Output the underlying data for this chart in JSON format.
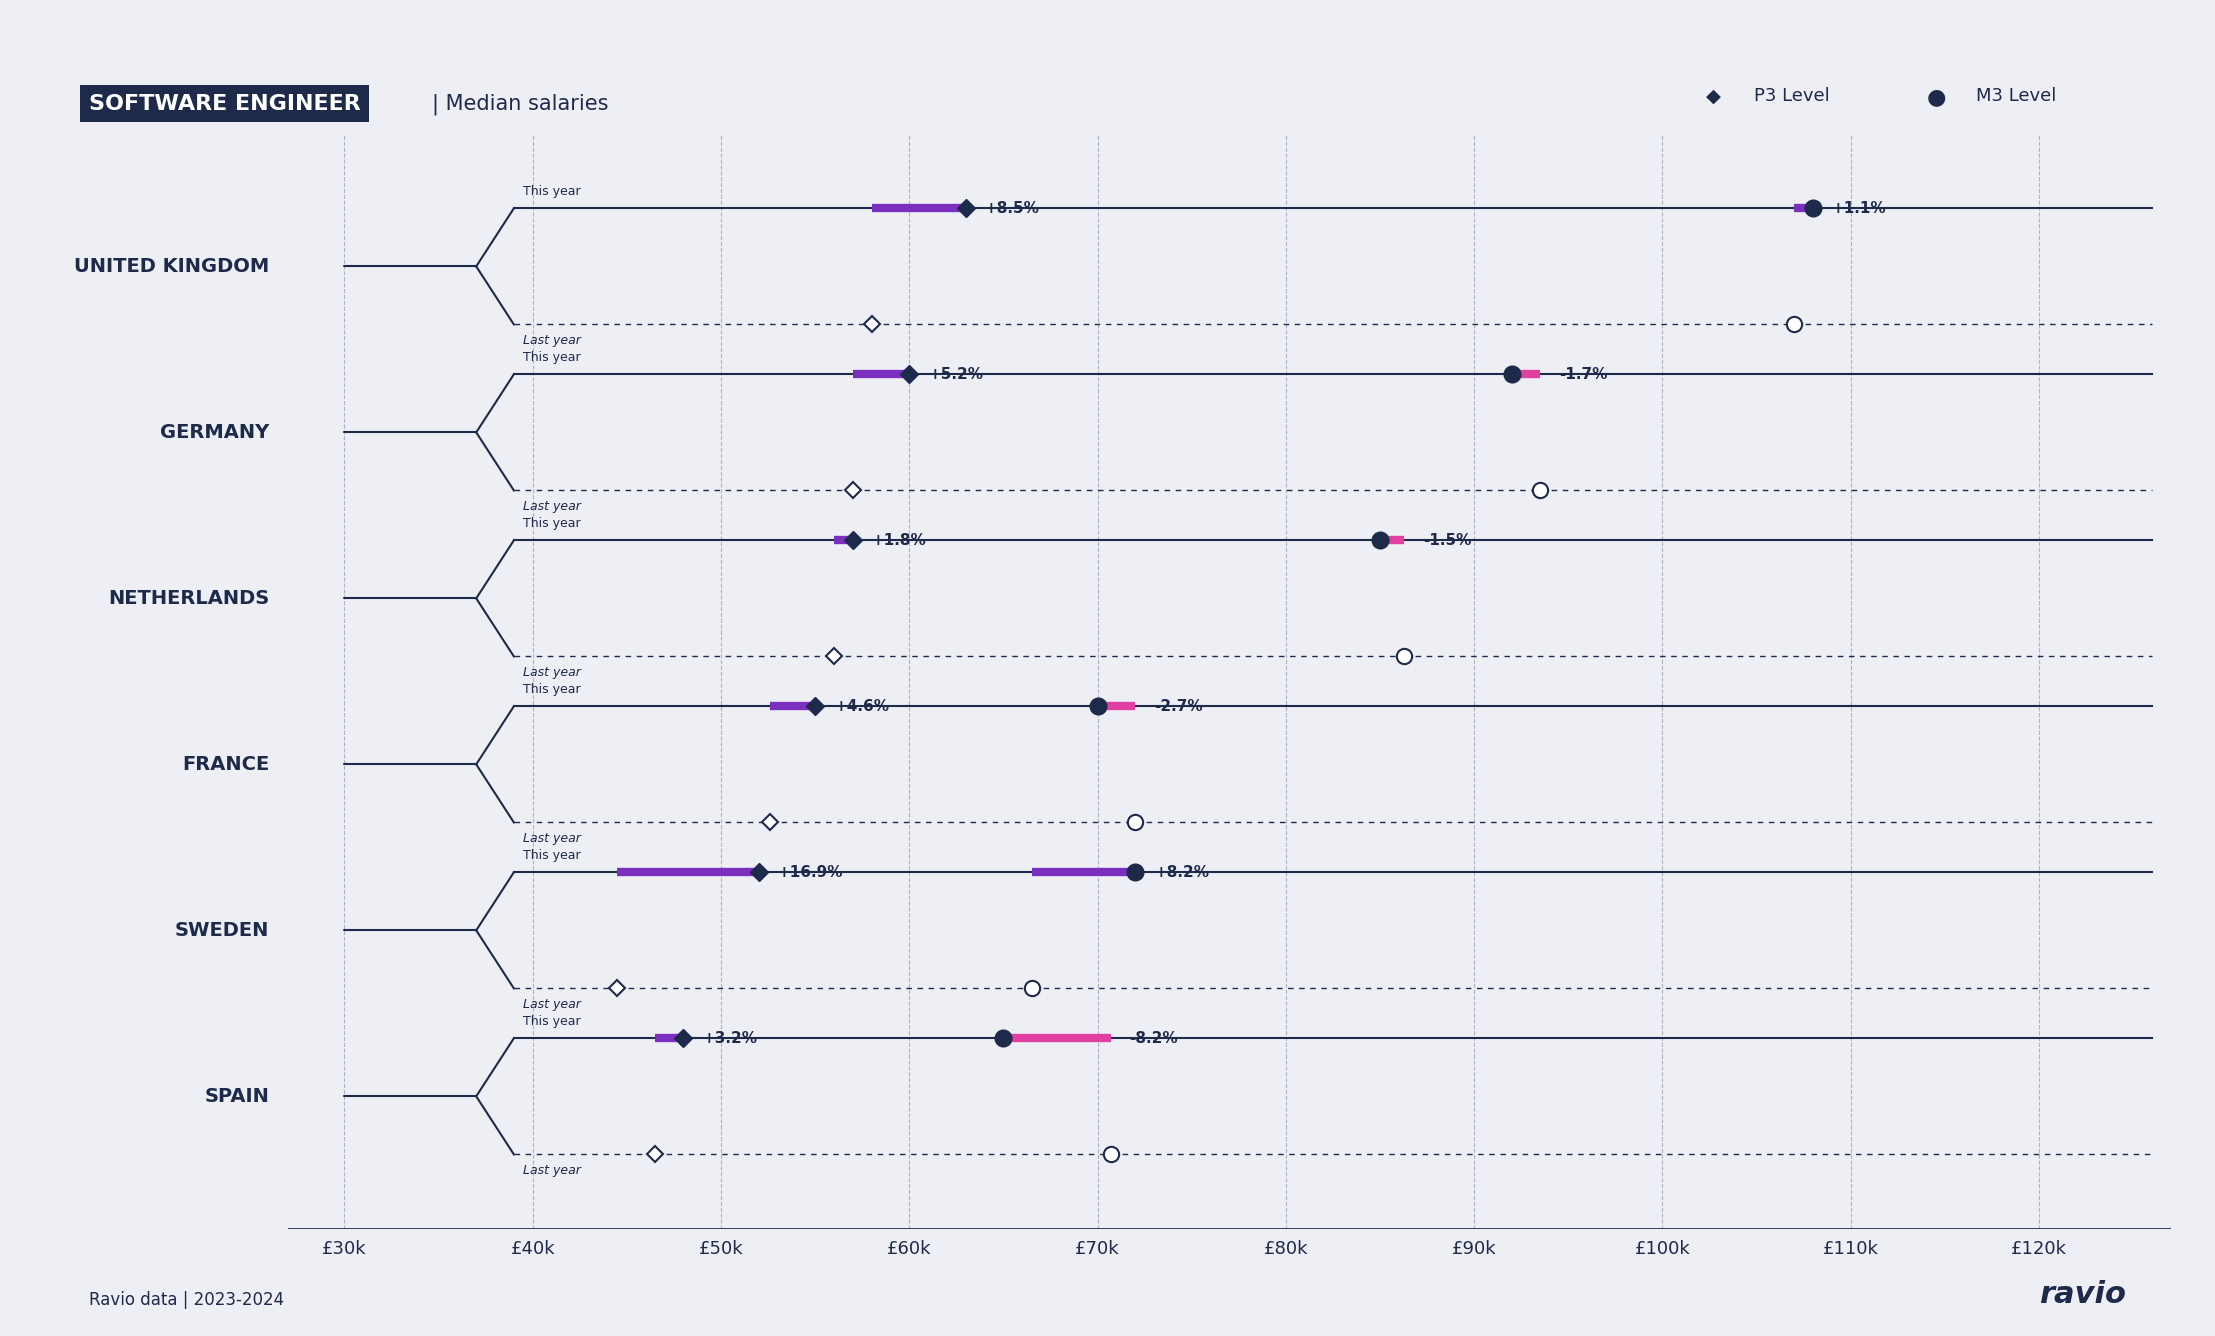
{
  "bg_color": "#eeeef5",
  "dark_navy": "#1e2a4a",
  "purple": "#7b2fbe",
  "pink": "#e040a0",
  "title_box_color": "#1e2a4a",
  "title_text": "SOFTWARE ENGINEER",
  "subtitle_text": "Median salaries",
  "legend_p3": "P3 Level",
  "legend_m3": "M3 Level",
  "footer_left": "Ravio data | 2023-2024",
  "footer_right": "ravio",
  "countries": [
    "UNITED KINGDOM",
    "GERMANY",
    "NETHERLANDS",
    "FRANCE",
    "SWEDEN",
    "SPAIN"
  ],
  "x_ticks": [
    30000,
    40000,
    50000,
    60000,
    70000,
    80000,
    90000,
    100000,
    110000,
    120000
  ],
  "x_tick_labels": [
    "£30k",
    "£40k",
    "£50k",
    "£60k",
    "£70k",
    "£80k",
    "£90k",
    "£100k",
    "£110k",
    "£120k"
  ],
  "xlim": [
    27000,
    127000
  ],
  "data": [
    {
      "country": "UNITED KINGDOM",
      "p3_this_year": 63000,
      "p3_last_year": 58000,
      "p3_change": "+8.5%",
      "p3_change_positive": true,
      "m3_this_year": 108000,
      "m3_last_year": 107000,
      "m3_change": "+1.1%",
      "m3_change_positive": true
    },
    {
      "country": "GERMANY",
      "p3_this_year": 60000,
      "p3_last_year": 57000,
      "p3_change": "+5.2%",
      "p3_change_positive": true,
      "m3_this_year": 92000,
      "m3_last_year": 93500,
      "m3_change": "-1.7%",
      "m3_change_positive": false
    },
    {
      "country": "NETHERLANDS",
      "p3_this_year": 57000,
      "p3_last_year": 56000,
      "p3_change": "+1.8%",
      "p3_change_positive": true,
      "m3_this_year": 85000,
      "m3_last_year": 86300,
      "m3_change": "-1.5%",
      "m3_change_positive": false
    },
    {
      "country": "FRANCE",
      "p3_this_year": 55000,
      "p3_last_year": 52600,
      "p3_change": "+4.6%",
      "p3_change_positive": true,
      "m3_this_year": 70000,
      "m3_last_year": 72000,
      "m3_change": "-2.7%",
      "m3_change_positive": false
    },
    {
      "country": "SWEDEN",
      "p3_this_year": 52000,
      "p3_last_year": 44500,
      "p3_change": "+16.9%",
      "p3_change_positive": true,
      "m3_this_year": 72000,
      "m3_last_year": 66500,
      "m3_change": "+8.2%",
      "m3_change_positive": true
    },
    {
      "country": "SPAIN",
      "p3_this_year": 48000,
      "p3_last_year": 46500,
      "p3_change": "+3.2%",
      "p3_change_positive": true,
      "m3_this_year": 65000,
      "m3_last_year": 70700,
      "m3_change": "-8.2%",
      "m3_change_positive": false
    }
  ]
}
